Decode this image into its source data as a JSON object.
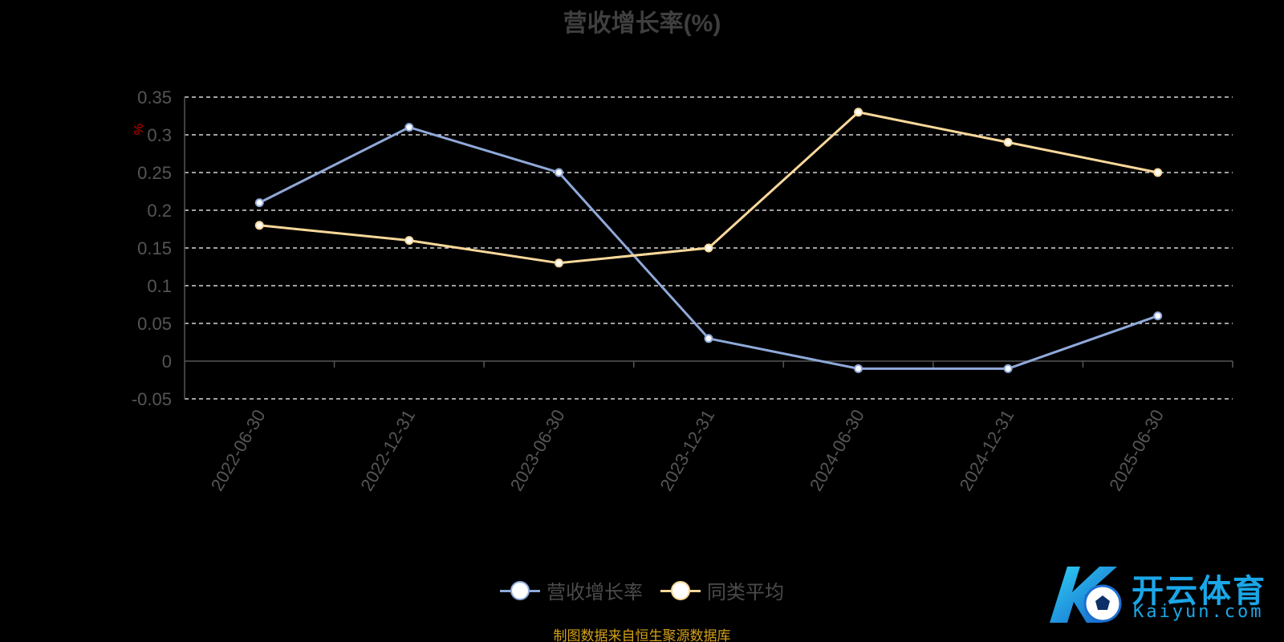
{
  "chart_data": {
    "type": "line",
    "title": "营收增长率(%)",
    "ylabel": "%",
    "xlabel": "",
    "categories": [
      "2022-06-30",
      "2022-12-31",
      "2023-06-30",
      "2023-12-31",
      "2024-06-30",
      "2024-12-31",
      "2025-06-30"
    ],
    "ylim": [
      -0.05,
      0.35
    ],
    "yticks": [
      "0.35",
      "0.3",
      "0.25",
      "0.2",
      "0.15",
      "0.1",
      "0.05",
      "0",
      "-0.05"
    ],
    "grid": true,
    "legend_position": "bottom",
    "series": [
      {
        "name": "营收增长率",
        "color": "#8fa9d9",
        "values": [
          0.21,
          0.31,
          0.25,
          0.03,
          -0.01,
          -0.01,
          0.06
        ]
      },
      {
        "name": "同类平均",
        "color": "#f9d89a",
        "values": [
          0.18,
          0.16,
          0.13,
          0.15,
          0.33,
          0.29,
          0.25
        ]
      }
    ]
  },
  "source_note": "制图数据来自恒生聚源数据库",
  "watermark": {
    "brand": "开云体育",
    "domain": "Kaiyun.com",
    "logo_icon": "k-soccer-ball-logo"
  }
}
